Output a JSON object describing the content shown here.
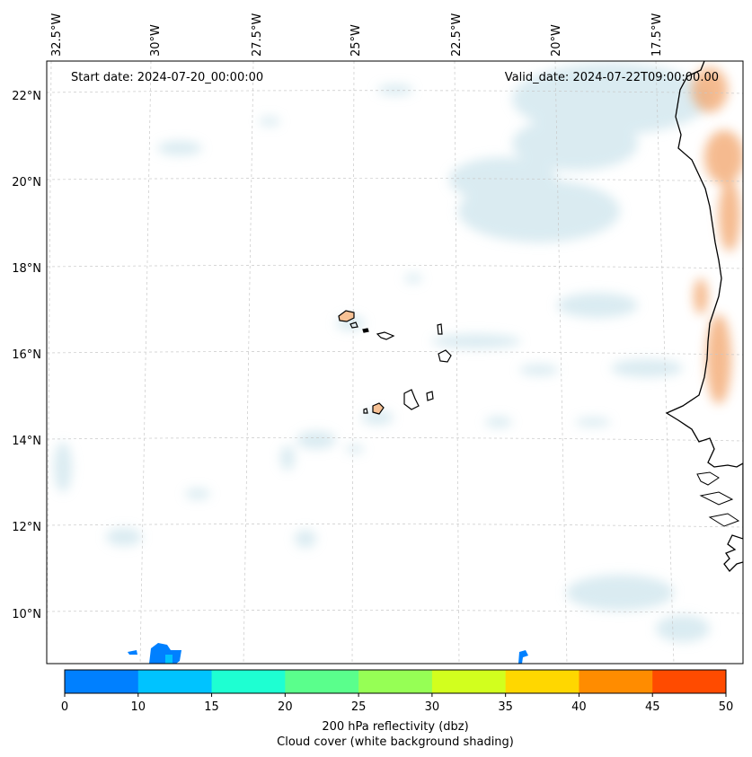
{
  "figure": {
    "start_date": "Start date: 2024-07-20_00:00:00",
    "valid_date": "Valid_date: 2024-07-22T09:00:00.00"
  },
  "map": {
    "lon_labels": [
      "32.5°W",
      "30°W",
      "27.5°W",
      "25°W",
      "22.5°W",
      "20°W",
      "17.5°W"
    ],
    "lat_labels": [
      "22°N",
      "20°N",
      "18°N",
      "16°N",
      "14°N",
      "12°N",
      "10°N"
    ],
    "gridlines": true
  },
  "colorbar": {
    "ticks": [
      "0",
      "10",
      "15",
      "20",
      "25",
      "30",
      "35",
      "40",
      "45",
      "50"
    ],
    "colors": [
      "#0080ff",
      "#00c3ff",
      "#1effd2",
      "#5aff8c",
      "#96ff55",
      "#d2ff1e",
      "#ffd700",
      "#ff8c00",
      "#ff4b00"
    ],
    "label_line1": "200 hPa reflectivity (dbz)",
    "label_line2": "Cloud cover (white background shading)"
  },
  "colors": {
    "cloud": "#bcdbe6",
    "land_fill": "#f6c195",
    "coast_warm": "#f2a46a",
    "reflectivity_blue": "#0080ff"
  }
}
